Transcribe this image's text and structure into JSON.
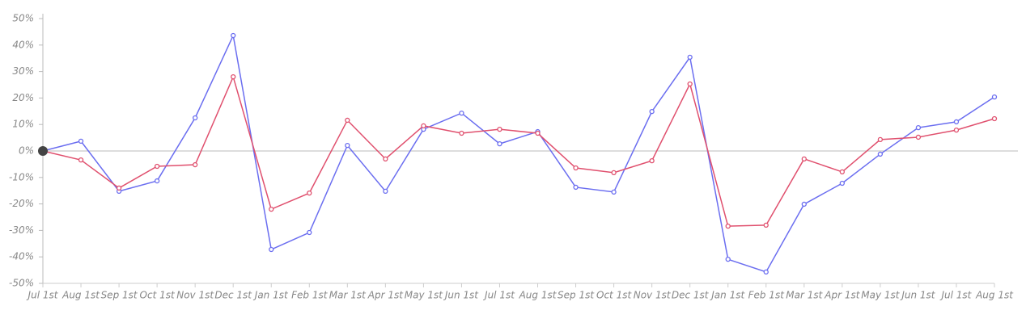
{
  "chart_data": {
    "type": "line",
    "categories": [
      "Jul 1st",
      "Aug 1st",
      "Sep 1st",
      "Oct 1st",
      "Nov 1st",
      "Dec 1st",
      "Jan 1st",
      "Feb 1st",
      "Mar 1st",
      "Apr 1st",
      "May 1st",
      "Jun 1st",
      "Jul 1st",
      "Aug 1st",
      "Sep 1st",
      "Oct 1st",
      "Nov 1st",
      "Dec 1st",
      "Jan 1st",
      "Feb 1st",
      "Mar 1st",
      "Apr 1st",
      "May 1st",
      "Jun 1st",
      "Jul 1st",
      "Aug 1st"
    ],
    "series": [
      {
        "color": "#6b6ef0",
        "values": [
          0,
          3.7,
          -15.2,
          -11.3,
          12.5,
          43.6,
          -37.2,
          -30.8,
          2.1,
          -15.2,
          8.2,
          14.3,
          2.7,
          7.3,
          -13.7,
          -15.5,
          14.9,
          35.4,
          -40.9,
          -45.7,
          -20.1,
          -12.2,
          -1.2,
          8.8,
          11.0,
          20.4
        ]
      },
      {
        "color": "#e0506e",
        "values": [
          0,
          -3.4,
          -14.0,
          -5.8,
          -5.2,
          28.0,
          -22.0,
          -15.9,
          11.6,
          -3.0,
          9.5,
          6.7,
          8.2,
          6.7,
          -6.4,
          -8.2,
          -3.7,
          25.3,
          -28.4,
          -28.0,
          -3.0,
          -7.9,
          4.3,
          5.2,
          7.9,
          12.2
        ]
      }
    ],
    "ylim": [
      -50,
      50
    ],
    "yticks": [
      {
        "value": -50,
        "label": "-50%"
      },
      {
        "value": -40,
        "label": "-40%"
      },
      {
        "value": -30,
        "label": "-30%"
      },
      {
        "value": -20,
        "label": "-20%"
      },
      {
        "value": -10,
        "label": "-10%"
      },
      {
        "value": 0,
        "label": "0%"
      },
      {
        "value": 10,
        "label": "10%"
      },
      {
        "value": 20,
        "label": "20%"
      },
      {
        "value": 30,
        "label": "30%"
      },
      {
        "value": 40,
        "label": "40%"
      },
      {
        "value": 50,
        "label": "50%"
      }
    ],
    "grid": false
  }
}
